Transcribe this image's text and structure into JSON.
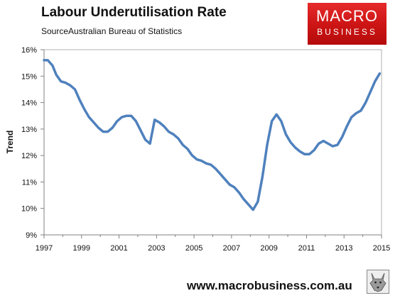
{
  "header": {
    "title": "Labour Underutilisation Rate",
    "source": "SourceAustralian Bureau of Statistics"
  },
  "logo": {
    "line1": "MACRO",
    "line2": "BUSINESS",
    "color": "#d81b1b"
  },
  "footer": {
    "url": "www.macrobusiness.com.au",
    "icon": "wolf-logo-icon"
  },
  "chart_data": {
    "type": "line",
    "title": "Labour Underutilisation Rate",
    "xlabel": "",
    "ylabel": "Trend",
    "xlim": [
      1997,
      2015
    ],
    "ylim": [
      9,
      16
    ],
    "x_ticks": [
      "1997",
      "1999",
      "2001",
      "2003",
      "2005",
      "2007",
      "2009",
      "2011",
      "2013",
      "2015"
    ],
    "y_ticks": [
      "9%",
      "10%",
      "11%",
      "12%",
      "13%",
      "14%",
      "15%",
      "16%"
    ],
    "grid": false,
    "legend": "none",
    "series": [
      {
        "color": "#4f81bd",
        "x": [
          1997.0,
          1997.2,
          1997.45,
          1997.65,
          1997.9,
          1998.15,
          1998.4,
          1998.65,
          1998.9,
          1999.15,
          1999.4,
          1999.65,
          1999.9,
          2000.15,
          2000.4,
          2000.65,
          2000.9,
          2001.15,
          2001.4,
          2001.65,
          2001.9,
          2002.15,
          2002.4,
          2002.65,
          2002.9,
          2003.15,
          2003.4,
          2003.65,
          2003.9,
          2004.15,
          2004.4,
          2004.65,
          2004.9,
          2005.15,
          2005.4,
          2005.65,
          2005.9,
          2006.15,
          2006.4,
          2006.65,
          2006.9,
          2007.15,
          2007.4,
          2007.65,
          2007.9,
          2008.15,
          2008.4,
          2008.65,
          2008.9,
          2009.15,
          2009.4,
          2009.65,
          2009.9,
          2010.15,
          2010.4,
          2010.65,
          2010.9,
          2011.15,
          2011.4,
          2011.65,
          2011.9,
          2012.15,
          2012.4,
          2012.65,
          2012.9,
          2013.15,
          2013.4,
          2013.65,
          2013.9,
          2014.15,
          2014.4,
          2014.65,
          2014.9
        ],
        "values": [
          15.6,
          15.6,
          15.4,
          15.05,
          14.8,
          14.75,
          14.65,
          14.5,
          14.1,
          13.75,
          13.45,
          13.25,
          13.05,
          12.9,
          12.9,
          13.05,
          13.3,
          13.45,
          13.5,
          13.5,
          13.3,
          12.95,
          12.6,
          12.45,
          13.35,
          13.25,
          13.1,
          12.9,
          12.8,
          12.65,
          12.4,
          12.25,
          12.0,
          11.85,
          11.8,
          11.7,
          11.65,
          11.5,
          11.3,
          11.1,
          10.9,
          10.8,
          10.6,
          10.35,
          10.15,
          9.95,
          10.25,
          11.2,
          12.4,
          13.3,
          13.55,
          13.3,
          12.8,
          12.5,
          12.3,
          12.15,
          12.05,
          12.05,
          12.2,
          12.45,
          12.55,
          12.45,
          12.35,
          12.4,
          12.7,
          13.1,
          13.45,
          13.6,
          13.7,
          14.0,
          14.4,
          14.8,
          15.1
        ]
      }
    ]
  }
}
